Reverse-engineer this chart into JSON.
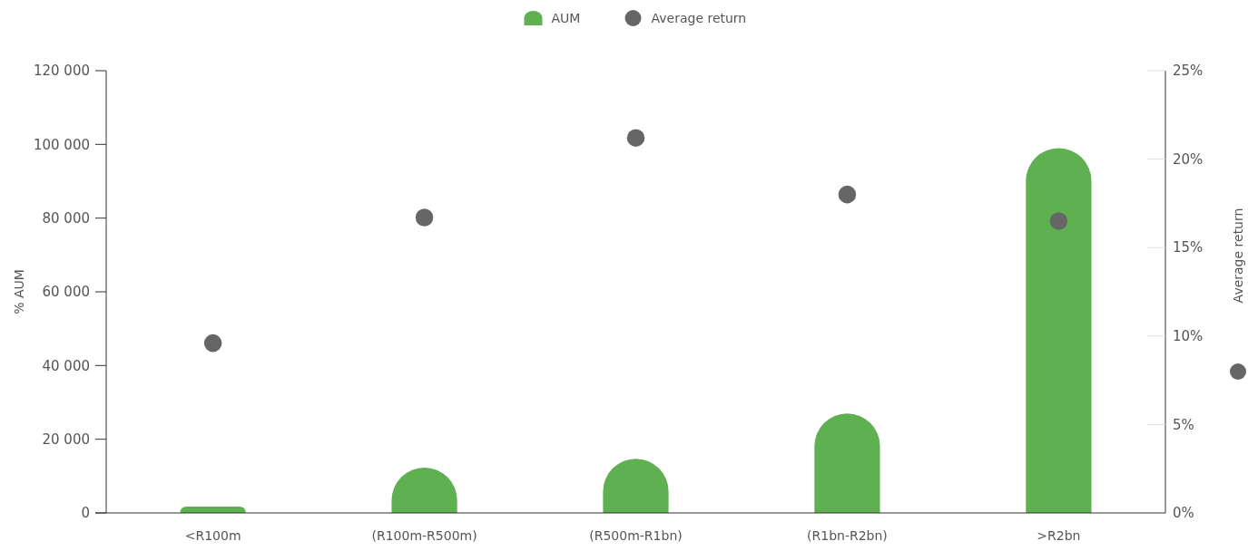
{
  "chart_data": {
    "type": "bar",
    "categories": [
      "<R100m",
      "(R100m-R500m)",
      "(R500m-R1bn)",
      "(R1bn-R2bn)",
      ">R2bn"
    ],
    "series": [
      {
        "name": "AUM",
        "color": "#5fb050",
        "values": [
          1700,
          12300,
          14700,
          27000,
          99000
        ]
      },
      {
        "name": "Average return",
        "type": "scatter",
        "axis": "y2",
        "color": "#666666",
        "values": [
          9.6,
          16.7,
          21.2,
          18.0,
          16.5
        ]
      }
    ],
    "ylabel": "% AUM",
    "y2label": "Average return",
    "ylim": [
      0,
      120000
    ],
    "yticks": [
      {
        "value": 0,
        "label": "0"
      },
      {
        "value": 20000,
        "label": "20 000"
      },
      {
        "value": 40000,
        "label": "40 000"
      },
      {
        "value": 60000,
        "label": "60 000"
      },
      {
        "value": 80000,
        "label": "80 000"
      },
      {
        "value": 100000,
        "label": "100 000"
      },
      {
        "value": 120000,
        "label": "120 000"
      }
    ],
    "y2lim": [
      0,
      25
    ],
    "y2ticks": [
      {
        "value": 0,
        "label": "0%"
      },
      {
        "value": 5,
        "label": "5%"
      },
      {
        "value": 10,
        "label": "10%"
      },
      {
        "value": 15,
        "label": "15%"
      },
      {
        "value": 20,
        "label": "20%"
      },
      {
        "value": 25,
        "label": "25%"
      }
    ],
    "legend": "top",
    "marker": "circle"
  }
}
